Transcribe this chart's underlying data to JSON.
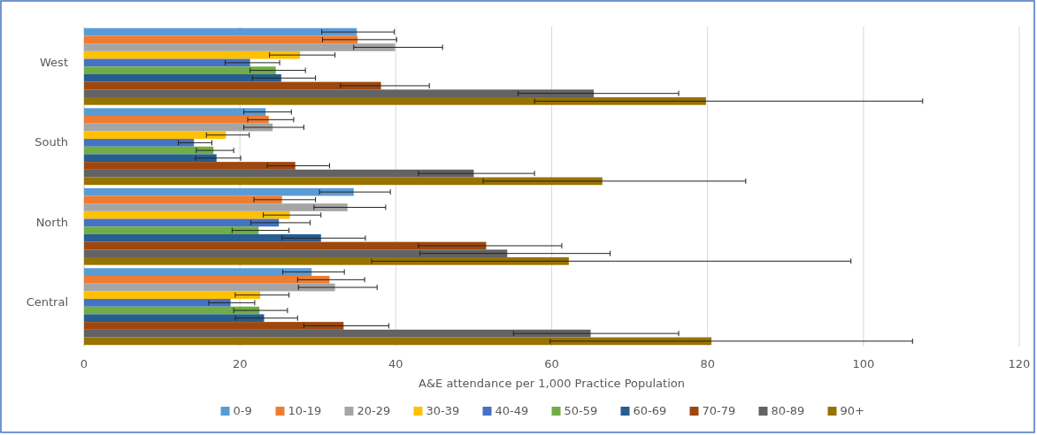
{
  "chart_data": {
    "type": "bar",
    "orientation": "horizontal",
    "xlabel": "A&E attendance per 1,000 Practice Population",
    "categories": [
      "West",
      "South",
      "North",
      "Central"
    ],
    "xlim": [
      0,
      120
    ],
    "xticks": [
      0,
      20,
      40,
      60,
      80,
      100,
      120
    ],
    "grid": "x",
    "legend": "bottom",
    "series": [
      {
        "name": "0-9",
        "color": "#5b9bd5",
        "values": [
          35.0,
          23.3,
          34.6,
          29.2
        ],
        "errors": [
          [
            30.5,
            39.8
          ],
          [
            20.5,
            26.6
          ],
          [
            30.2,
            39.3
          ],
          [
            25.5,
            33.4
          ]
        ]
      },
      {
        "name": "10-19",
        "color": "#ed7d31",
        "values": [
          35.1,
          23.7,
          25.4,
          31.5
        ],
        "errors": [
          [
            30.6,
            40.1
          ],
          [
            21.0,
            26.9
          ],
          [
            21.8,
            29.7
          ],
          [
            27.4,
            36.0
          ]
        ]
      },
      {
        "name": "20-29",
        "color": "#a5a5a5",
        "values": [
          39.9,
          24.2,
          33.8,
          32.2
        ],
        "errors": [
          [
            34.6,
            46.0
          ],
          [
            20.5,
            28.2
          ],
          [
            29.5,
            38.7
          ],
          [
            27.5,
            37.6
          ]
        ]
      },
      {
        "name": "30-39",
        "color": "#ffc000",
        "values": [
          27.7,
          18.2,
          26.4,
          22.6
        ],
        "errors": [
          [
            23.8,
            32.2
          ],
          [
            15.7,
            21.2
          ],
          [
            23.0,
            30.4
          ],
          [
            19.4,
            26.3
          ]
        ]
      },
      {
        "name": "40-49",
        "color": "#4472c4",
        "values": [
          21.3,
          14.1,
          25.0,
          18.8
        ],
        "errors": [
          [
            18.1,
            25.1
          ],
          [
            12.1,
            16.4
          ],
          [
            21.4,
            29.0
          ],
          [
            16.0,
            21.9
          ]
        ]
      },
      {
        "name": "50-59",
        "color": "#70ad47",
        "values": [
          24.6,
          16.6,
          22.4,
          22.5
        ],
        "errors": [
          [
            21.3,
            28.4
          ],
          [
            14.4,
            19.2
          ],
          [
            19.0,
            26.3
          ],
          [
            19.2,
            26.1
          ]
        ]
      },
      {
        "name": "60-69",
        "color": "#255e91",
        "values": [
          25.3,
          17.0,
          30.4,
          23.1
        ],
        "errors": [
          [
            21.6,
            29.7
          ],
          [
            14.3,
            20.1
          ],
          [
            25.4,
            36.1
          ],
          [
            19.4,
            27.4
          ]
        ]
      },
      {
        "name": "70-79",
        "color": "#9e480e",
        "values": [
          38.1,
          27.1,
          51.6,
          33.3
        ],
        "errors": [
          [
            32.9,
            44.3
          ],
          [
            23.5,
            31.5
          ],
          [
            42.9,
            61.3
          ],
          [
            28.2,
            39.1
          ]
        ]
      },
      {
        "name": "80-89",
        "color": "#636363",
        "values": [
          65.4,
          50.0,
          54.3,
          65.0
        ],
        "errors": [
          [
            55.7,
            76.3
          ],
          [
            42.9,
            57.8
          ],
          [
            43.1,
            67.5
          ],
          [
            55.1,
            76.3
          ]
        ]
      },
      {
        "name": "90+",
        "color": "#997300",
        "values": [
          79.8,
          66.5,
          62.2,
          80.5
        ],
        "errors": [
          [
            57.8,
            107.6
          ],
          [
            51.2,
            84.9
          ],
          [
            36.9,
            98.4
          ],
          [
            59.8,
            106.3
          ]
        ]
      }
    ]
  }
}
